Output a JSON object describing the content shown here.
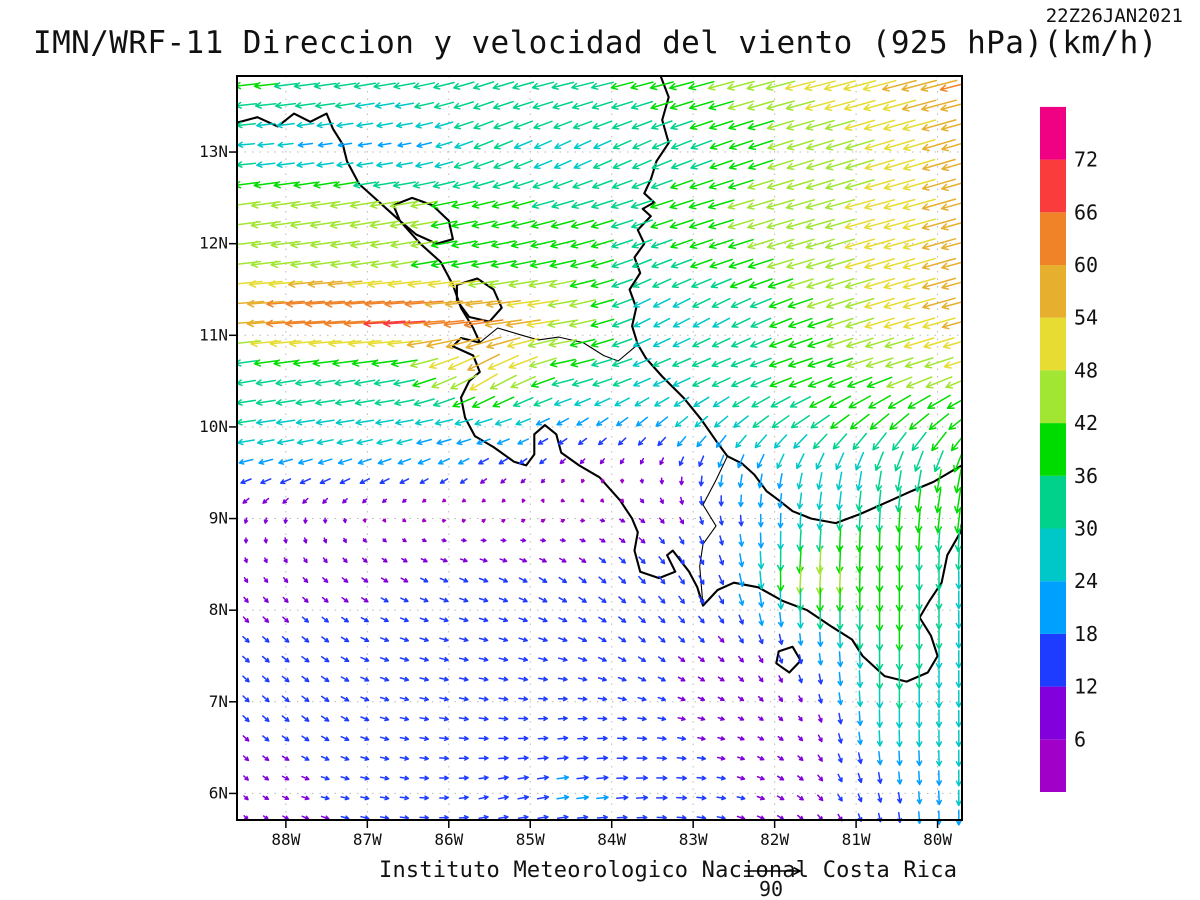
{
  "header": {
    "title": "IMN/WRF-11 Direccion y velocidad del viento (925 hPa)(km/h)",
    "timestamp": "22Z26JAN2021"
  },
  "footer": {
    "credit": "Instituto Meteorologico Nacional Costa Rica"
  },
  "chart_data": {
    "type": "vector_field",
    "title": "IMN/WRF-11 Direccion y velocidad del viento (925 hPa)(km/h)",
    "timestamp": "22Z26JAN2021",
    "units": "km/h",
    "pressure_level": "925 hPa",
    "legend_position": "right",
    "grid": "dotted",
    "reference_arrow": {
      "value": 90,
      "label": "90"
    },
    "x_axis": {
      "tick_labels": [
        "88W",
        "87W",
        "86W",
        "85W",
        "84W",
        "83W",
        "82W",
        "81W",
        "80W"
      ],
      "tick_lons": [
        -88,
        -87,
        -86,
        -85,
        -84,
        -83,
        -82,
        -81,
        -80
      ],
      "range": [
        -88.6,
        -79.7
      ]
    },
    "y_axis": {
      "tick_labels": [
        "6N",
        "7N",
        "8N",
        "9N",
        "10N",
        "11N",
        "12N",
        "13N"
      ],
      "tick_lats": [
        6,
        7,
        8,
        9,
        10,
        11,
        12,
        13
      ],
      "range": [
        5.71,
        13.83
      ]
    },
    "colorbar": {
      "levels": [
        6,
        12,
        18,
        24,
        30,
        36,
        42,
        48,
        54,
        60,
        66,
        72
      ],
      "colors": [
        "#A000C8",
        "#8200DC",
        "#1E3CFF",
        "#00A0FF",
        "#00C8C8",
        "#00D28C",
        "#00DC00",
        "#A0E632",
        "#E6DC32",
        "#E6AF2D",
        "#F08228",
        "#FA3C3C",
        "#F00082"
      ]
    },
    "wind_grid": {
      "comment_units": "u eastward km/h, v northward km/h",
      "lons": [
        -88.6,
        -87.6,
        -86.6,
        -85.6,
        -84.6,
        -83.6,
        -82.6,
        -81.6,
        -80.6,
        -79.7
      ],
      "lats": [
        13.8,
        13.0,
        12.4,
        11.8,
        11.2,
        10.6,
        10.0,
        9.5,
        9.0,
        8.4,
        7.6,
        6.8,
        6.0,
        5.7
      ],
      "uv": [
        [
          [
            -38,
            -4
          ],
          [
            -36,
            -5
          ],
          [
            -35,
            -6
          ],
          [
            -32,
            -10
          ],
          [
            -35,
            -8
          ],
          [
            -36,
            -9
          ],
          [
            -42,
            -11
          ],
          [
            -48,
            -12
          ],
          [
            -53,
            -14
          ],
          [
            -60,
            -15
          ]
        ],
        [
          [
            -26,
            -2
          ],
          [
            -20,
            -3
          ],
          [
            -18,
            -3
          ],
          [
            -30,
            -12
          ],
          [
            -24,
            -12
          ],
          [
            -28,
            -13
          ],
          [
            -34,
            -12
          ],
          [
            -42,
            -13
          ],
          [
            -46,
            -14
          ],
          [
            -54,
            -16
          ]
        ],
        [
          [
            -46,
            -6
          ],
          [
            -48,
            -7
          ],
          [
            -47,
            -8
          ],
          [
            -36,
            -8
          ],
          [
            -35,
            -10
          ],
          [
            -34,
            -11
          ],
          [
            -41,
            -12
          ],
          [
            -45,
            -13
          ],
          [
            -48,
            -13
          ],
          [
            -56,
            -16
          ]
        ],
        [
          [
            -46,
            -5
          ],
          [
            -46,
            -6
          ],
          [
            -42,
            -7
          ],
          [
            -37,
            -7
          ],
          [
            -40,
            -9
          ],
          [
            -30,
            -12
          ],
          [
            -36,
            -12
          ],
          [
            -44,
            -13
          ],
          [
            -48,
            -14
          ],
          [
            -55,
            -15
          ]
        ],
        [
          [
            -60,
            -4
          ],
          [
            -68,
            -4
          ],
          [
            -70,
            -4
          ],
          [
            -64,
            -6
          ],
          [
            -48,
            -8
          ],
          [
            -24,
            -13
          ],
          [
            -26,
            -14
          ],
          [
            -38,
            -13
          ],
          [
            -48,
            -14
          ],
          [
            -54,
            -15
          ]
        ],
        [
          [
            -30,
            -5
          ],
          [
            -32,
            -5
          ],
          [
            -34,
            -6
          ],
          [
            -48,
            -30
          ],
          [
            -38,
            -9
          ],
          [
            -28,
            -11
          ],
          [
            -30,
            -12
          ],
          [
            -38,
            -12
          ],
          [
            -42,
            -13
          ],
          [
            -44,
            -15
          ]
        ],
        [
          [
            -30,
            -4
          ],
          [
            -28,
            -4
          ],
          [
            -27,
            -5
          ],
          [
            -25,
            -6
          ],
          [
            -16,
            -10
          ],
          [
            -16,
            -14
          ],
          [
            -20,
            -18
          ],
          [
            -28,
            -20
          ],
          [
            -28,
            -26
          ],
          [
            -30,
            -26
          ]
        ],
        [
          [
            -19,
            -6
          ],
          [
            -19,
            -7
          ],
          [
            -17,
            -8
          ],
          [
            -12,
            -9
          ],
          [
            -5,
            -6
          ],
          [
            0,
            -6
          ],
          [
            -4,
            -20
          ],
          [
            -6,
            -25
          ],
          [
            -6,
            -31
          ],
          [
            -8,
            -37
          ]
        ],
        [
          [
            -3,
            -8
          ],
          [
            0,
            -8
          ],
          [
            2,
            -2
          ],
          [
            4,
            3
          ],
          [
            5,
            3
          ],
          [
            8,
            -6
          ],
          [
            2,
            -14
          ],
          [
            -2,
            -26
          ],
          [
            -2,
            -36
          ],
          [
            -5,
            -40
          ]
        ],
        [
          [
            4,
            -7
          ],
          [
            7,
            -7
          ],
          [
            10,
            -6
          ],
          [
            13,
            -5
          ],
          [
            11,
            -8
          ],
          [
            10,
            -11
          ],
          [
            6,
            -15
          ],
          [
            -3,
            -50
          ],
          [
            0,
            -38
          ],
          [
            0,
            -28
          ]
        ],
        [
          [
            10,
            -9
          ],
          [
            11,
            -8
          ],
          [
            13,
            -4
          ],
          [
            13,
            -3
          ],
          [
            13,
            -4
          ],
          [
            10,
            -8
          ],
          [
            8,
            -8
          ],
          [
            2,
            -16
          ],
          [
            0,
            -38
          ],
          [
            0,
            -27
          ]
        ],
        [
          [
            9,
            -9
          ],
          [
            11,
            -8
          ],
          [
            13,
            -3
          ],
          [
            14,
            -2
          ],
          [
            14,
            1
          ],
          [
            13,
            -2
          ],
          [
            9,
            -3
          ],
          [
            5,
            -7
          ],
          [
            0,
            -30
          ],
          [
            0,
            -26
          ]
        ],
        [
          [
            6,
            -6
          ],
          [
            12,
            -3
          ],
          [
            13,
            -2
          ],
          [
            14,
            3
          ],
          [
            19,
            3
          ],
          [
            18,
            1
          ],
          [
            13,
            -2
          ],
          [
            9,
            -7
          ],
          [
            3,
            -15
          ],
          [
            0,
            -25
          ]
        ],
        [
          [
            5,
            -6
          ],
          [
            11,
            -4
          ],
          [
            13,
            -2
          ],
          [
            14,
            2
          ],
          [
            16,
            2
          ],
          [
            15,
            0
          ],
          [
            12,
            -3
          ],
          [
            8,
            -7
          ],
          [
            2,
            -14
          ],
          [
            0,
            -24
          ]
        ]
      ]
    },
    "coastlines": {
      "gulf_of_fonseca": [
        [
          -88.6,
          13.32
        ],
        [
          -88.35,
          13.38
        ],
        [
          -88.1,
          13.28
        ],
        [
          -87.9,
          13.42
        ],
        [
          -87.7,
          13.33
        ],
        [
          -87.5,
          13.42
        ],
        [
          -87.42,
          13.25
        ],
        [
          -87.3,
          13.08
        ]
      ],
      "pacific_coast": [
        [
          -87.3,
          13.08
        ],
        [
          -87.25,
          12.9
        ],
        [
          -87.1,
          12.65
        ],
        [
          -86.85,
          12.45
        ],
        [
          -86.6,
          12.25
        ],
        [
          -86.35,
          12.0
        ],
        [
          -86.1,
          11.8
        ],
        [
          -85.95,
          11.55
        ],
        [
          -85.85,
          11.3
        ],
        [
          -85.7,
          11.08
        ],
        [
          -85.62,
          10.92
        ],
        [
          -85.85,
          10.97
        ],
        [
          -85.95,
          10.88
        ],
        [
          -85.7,
          10.78
        ],
        [
          -85.62,
          10.6
        ],
        [
          -85.75,
          10.5
        ],
        [
          -85.85,
          10.32
        ],
        [
          -85.8,
          10.1
        ],
        [
          -85.68,
          9.9
        ],
        [
          -85.45,
          9.78
        ],
        [
          -85.2,
          9.62
        ],
        [
          -85.05,
          9.58
        ],
        [
          -84.95,
          9.7
        ],
        [
          -84.95,
          9.92
        ],
        [
          -84.82,
          10.02
        ],
        [
          -84.68,
          9.92
        ],
        [
          -84.62,
          9.72
        ],
        [
          -84.4,
          9.58
        ],
        [
          -84.15,
          9.45
        ],
        [
          -83.9,
          9.2
        ],
        [
          -83.75,
          9.0
        ],
        [
          -83.68,
          8.85
        ],
        [
          -83.72,
          8.65
        ],
        [
          -83.65,
          8.42
        ],
        [
          -83.42,
          8.35
        ],
        [
          -83.22,
          8.42
        ],
        [
          -83.32,
          8.6
        ],
        [
          -83.25,
          8.65
        ],
        [
          -83.05,
          8.42
        ],
        [
          -82.95,
          8.25
        ],
        [
          -82.88,
          8.05
        ],
        [
          -82.7,
          8.22
        ],
        [
          -82.5,
          8.3
        ],
        [
          -82.2,
          8.25
        ],
        [
          -81.9,
          8.1
        ],
        [
          -81.6,
          8.0
        ],
        [
          -81.3,
          7.82
        ],
        [
          -81.05,
          7.68
        ],
        [
          -80.92,
          7.5
        ],
        [
          -80.65,
          7.28
        ],
        [
          -80.38,
          7.22
        ],
        [
          -80.12,
          7.32
        ],
        [
          -80.0,
          7.5
        ],
        [
          -80.08,
          7.72
        ],
        [
          -80.22,
          7.92
        ],
        [
          -80.1,
          8.1
        ],
        [
          -79.95,
          8.3
        ],
        [
          -79.88,
          8.6
        ],
        [
          -79.72,
          8.85
        ],
        [
          -79.7,
          8.95
        ]
      ],
      "caribbean_coast": [
        [
          -83.4,
          13.83
        ],
        [
          -83.3,
          13.6
        ],
        [
          -83.38,
          13.35
        ],
        [
          -83.3,
          13.1
        ],
        [
          -83.45,
          12.9
        ],
        [
          -83.52,
          12.7
        ],
        [
          -83.6,
          12.55
        ],
        [
          -83.48,
          12.45
        ],
        [
          -83.62,
          12.38
        ],
        [
          -83.52,
          12.3
        ],
        [
          -83.68,
          12.15
        ],
        [
          -83.6,
          12.0
        ],
        [
          -83.72,
          11.85
        ],
        [
          -83.65,
          11.68
        ],
        [
          -83.78,
          11.5
        ],
        [
          -83.7,
          11.3
        ],
        [
          -83.75,
          11.1
        ],
        [
          -83.68,
          10.9
        ],
        [
          -83.58,
          10.75
        ],
        [
          -83.38,
          10.55
        ],
        [
          -83.12,
          10.32
        ],
        [
          -82.9,
          10.08
        ],
        [
          -82.72,
          9.85
        ],
        [
          -82.58,
          9.68
        ],
        [
          -82.4,
          9.6
        ],
        [
          -82.25,
          9.48
        ],
        [
          -82.1,
          9.3
        ],
        [
          -81.95,
          9.2
        ],
        [
          -81.78,
          9.08
        ],
        [
          -81.55,
          9.0
        ],
        [
          -81.25,
          8.95
        ],
        [
          -80.95,
          9.05
        ],
        [
          -80.62,
          9.18
        ],
        [
          -80.32,
          9.3
        ],
        [
          -80.05,
          9.4
        ],
        [
          -79.82,
          9.52
        ],
        [
          -79.7,
          9.58
        ]
      ],
      "lake_managua": [
        [
          -86.68,
          12.42
        ],
        [
          -86.45,
          12.5
        ],
        [
          -86.2,
          12.42
        ],
        [
          -86.0,
          12.25
        ],
        [
          -85.95,
          12.05
        ],
        [
          -86.15,
          12.0
        ],
        [
          -86.4,
          12.1
        ],
        [
          -86.6,
          12.25
        ],
        [
          -86.68,
          12.42
        ]
      ],
      "lake_nicaragua": [
        [
          -85.9,
          11.55
        ],
        [
          -85.65,
          11.62
        ],
        [
          -85.45,
          11.5
        ],
        [
          -85.35,
          11.3
        ],
        [
          -85.5,
          11.15
        ],
        [
          -85.75,
          11.2
        ],
        [
          -85.9,
          11.38
        ],
        [
          -85.9,
          11.55
        ]
      ],
      "coiba_island": [
        [
          -81.95,
          7.55
        ],
        [
          -81.78,
          7.6
        ],
        [
          -81.68,
          7.45
        ],
        [
          -81.82,
          7.32
        ],
        [
          -81.98,
          7.42
        ],
        [
          -81.95,
          7.55
        ]
      ],
      "border_nicaragua_costa_rica": [
        [
          -85.62,
          10.92
        ],
        [
          -85.4,
          11.08
        ],
        [
          -85.1,
          11.0
        ],
        [
          -84.9,
          10.95
        ],
        [
          -84.65,
          10.98
        ],
        [
          -84.35,
          10.92
        ],
        [
          -84.1,
          10.78
        ],
        [
          -83.92,
          10.72
        ],
        [
          -83.68,
          10.9
        ]
      ],
      "border_costa_rica_panama": [
        [
          -82.58,
          9.68
        ],
        [
          -82.72,
          9.42
        ],
        [
          -82.88,
          9.15
        ],
        [
          -82.72,
          8.92
        ],
        [
          -82.88,
          8.72
        ],
        [
          -82.92,
          8.48
        ],
        [
          -82.88,
          8.05
        ]
      ]
    }
  }
}
